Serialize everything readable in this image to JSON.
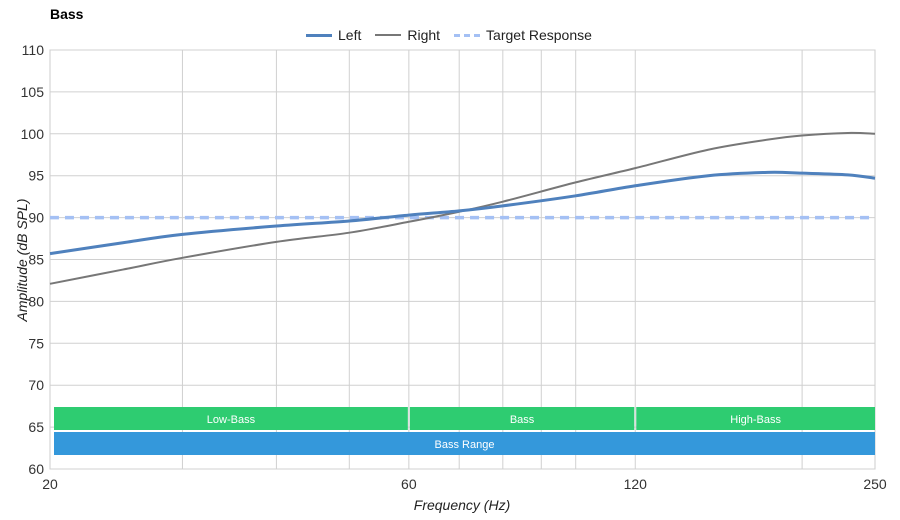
{
  "chart_data": {
    "type": "line",
    "title": "Bass",
    "xlabel": "Frequency (Hz)",
    "ylabel": "Amplitude (dB SPL)",
    "xscale": "log",
    "xlim": [
      20,
      250
    ],
    "ylim": [
      60,
      110
    ],
    "xticks": [
      20,
      60,
      120,
      250
    ],
    "yticks": [
      60,
      65,
      70,
      75,
      80,
      85,
      90,
      95,
      100,
      105,
      110
    ],
    "grid": true,
    "legend_position": "top",
    "series": [
      {
        "name": "Left",
        "color": "#4f81bd",
        "style": "solid-thick",
        "x": [
          20,
          25,
          30,
          40,
          50,
          60,
          70,
          80,
          100,
          120,
          150,
          180,
          200,
          230,
          250
        ],
        "y": [
          85.7,
          87.0,
          88.0,
          89.0,
          89.6,
          90.3,
          90.8,
          91.4,
          92.6,
          93.8,
          95.0,
          95.4,
          95.3,
          95.1,
          94.7
        ]
      },
      {
        "name": "Right",
        "color": "#777777",
        "style": "solid",
        "x": [
          20,
          25,
          30,
          40,
          50,
          60,
          70,
          80,
          100,
          120,
          150,
          180,
          200,
          230,
          250
        ],
        "y": [
          82.1,
          83.8,
          85.2,
          87.1,
          88.2,
          89.5,
          90.7,
          91.9,
          94.2,
          95.9,
          98.1,
          99.3,
          99.8,
          100.1,
          100.0
        ]
      },
      {
        "name": "Target Response",
        "color": "#a4c0f4",
        "style": "dashed",
        "x": [
          20,
          250
        ],
        "y": [
          90,
          90
        ]
      }
    ],
    "bands": [
      {
        "label": "Low-Bass",
        "from": 20,
        "to": 60,
        "row": 1,
        "color": "#2ecc71"
      },
      {
        "label": "Bass",
        "from": 60,
        "to": 120,
        "row": 1,
        "color": "#2ecc71"
      },
      {
        "label": "High-Bass",
        "from": 120,
        "to": 250,
        "row": 1,
        "color": "#2ecc71"
      },
      {
        "label": "Bass Range",
        "from": 20,
        "to": 250,
        "row": 2,
        "color": "#3498db"
      }
    ]
  }
}
